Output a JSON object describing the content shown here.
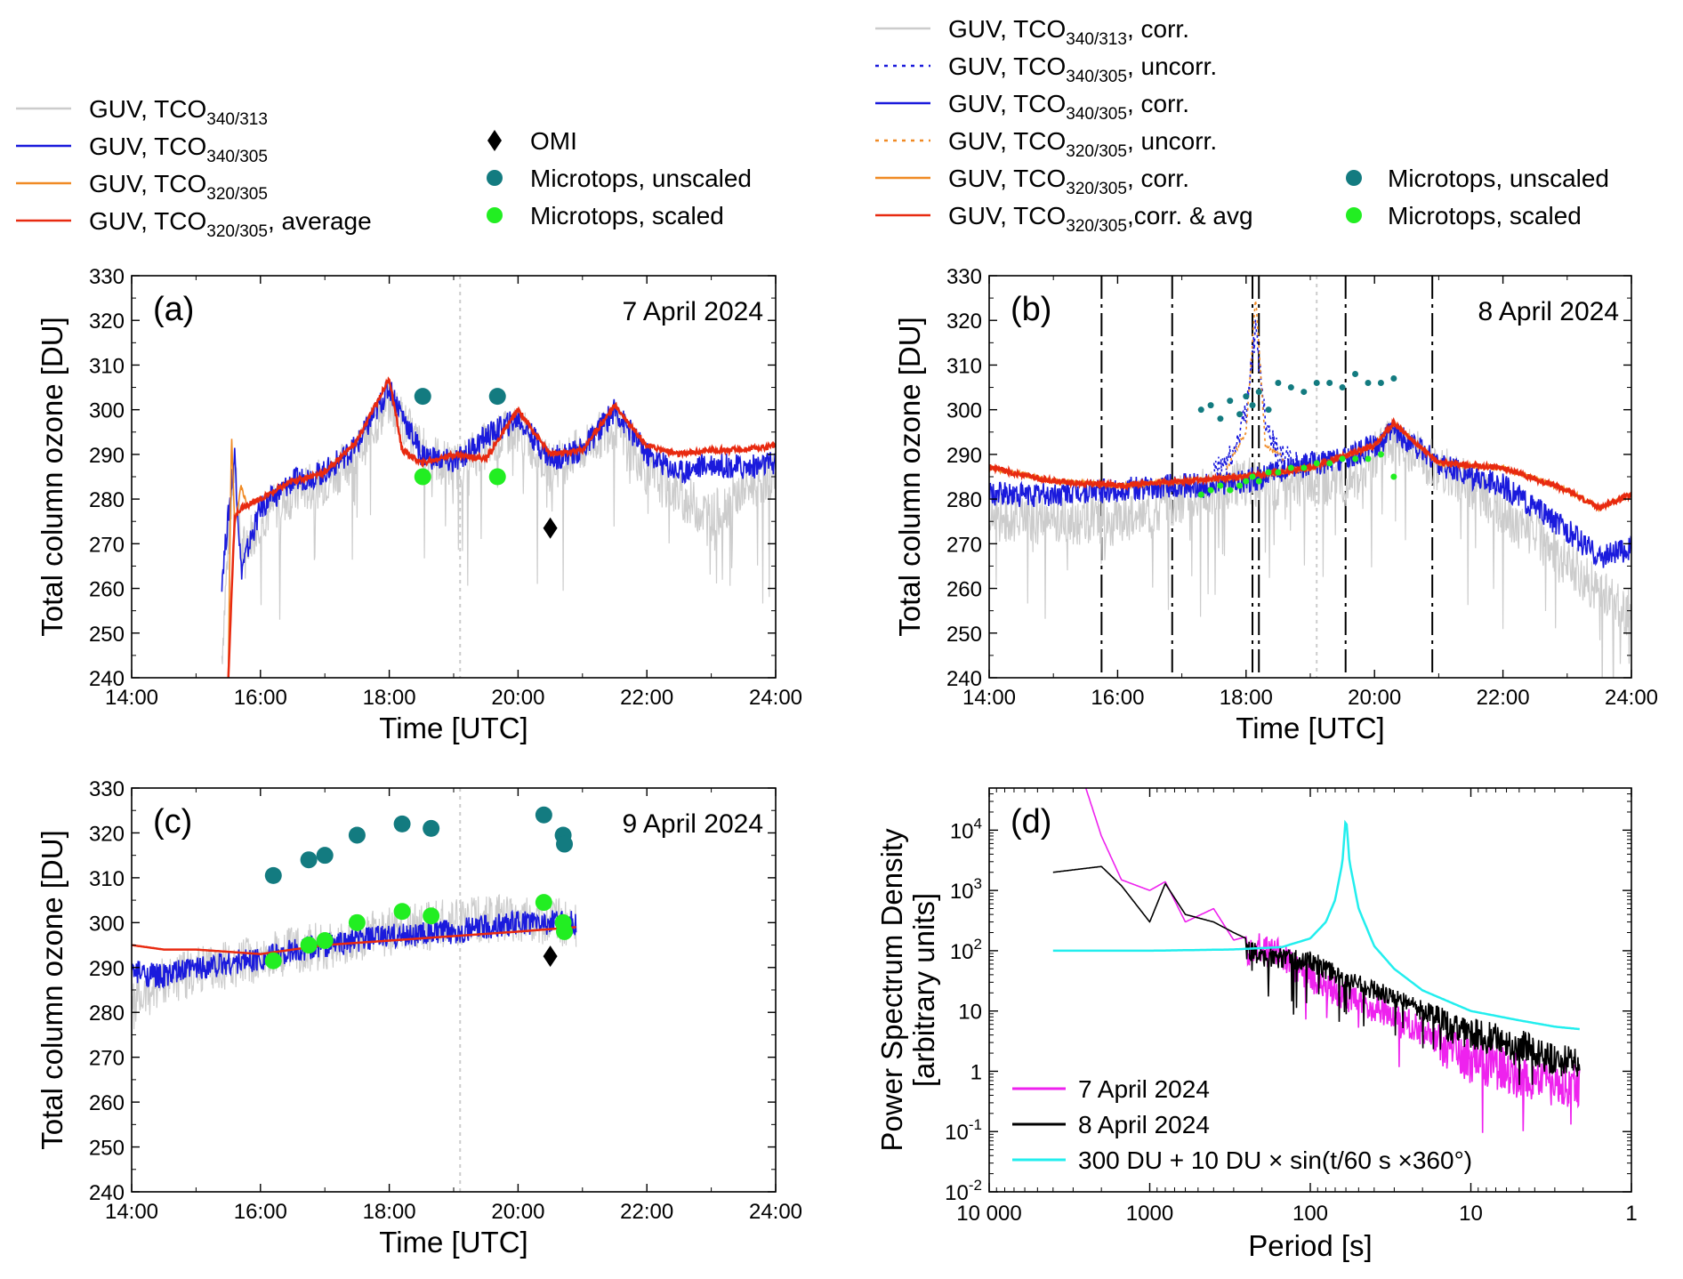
{
  "legend_left": [
    {
      "type": "line",
      "color": "#cccccc",
      "dash": "",
      "text": "GUV, TCO",
      "sub": "340/313",
      "after": ""
    },
    {
      "type": "line",
      "color": "#1a1adc",
      "dash": "",
      "text": "GUV, TCO",
      "sub": "340/305",
      "after": ""
    },
    {
      "type": "line",
      "color": "#f08a24",
      "dash": "",
      "text": "GUV, TCO",
      "sub": "320/305",
      "after": ""
    },
    {
      "type": "line",
      "color": "#e82a10",
      "dash": "",
      "text": "GUV, TCO",
      "sub": "320/305",
      "after": ", average"
    }
  ],
  "legend_mid": [
    {
      "type": "diamond",
      "color": "#000000",
      "text": "OMI"
    },
    {
      "type": "dot",
      "color": "#137b80",
      "text": "Microtops, unscaled"
    },
    {
      "type": "dot",
      "color": "#22ee22",
      "text": "Microtops, scaled"
    }
  ],
  "legend_right": [
    {
      "type": "line",
      "color": "#cccccc",
      "dash": "",
      "text": "GUV, TCO",
      "sub": "340/313",
      "after": ", corr."
    },
    {
      "type": "line",
      "color": "#1a1adc",
      "dash": "4 6",
      "text": "GUV, TCO",
      "sub": "340/305",
      "after": ", uncorr."
    },
    {
      "type": "line",
      "color": "#1a1adc",
      "dash": "",
      "text": "GUV, TCO",
      "sub": "340/305",
      "after": ", corr."
    },
    {
      "type": "line",
      "color": "#f08a24",
      "dash": "4 6",
      "text": "GUV, TCO",
      "sub": "320/305",
      "after": ", uncorr."
    },
    {
      "type": "line",
      "color": "#f08a24",
      "dash": "",
      "text": "GUV, TCO",
      "sub": "320/305",
      "after": ", corr."
    },
    {
      "type": "line",
      "color": "#e82a10",
      "dash": "",
      "text": "GUV, TCO",
      "sub": "320/305",
      "after": ",corr. & avg"
    }
  ],
  "legend_right_markers": [
    {
      "type": "dot",
      "color": "#137b80",
      "text": "Microtops, unscaled"
    },
    {
      "type": "dot",
      "color": "#22ee22",
      "text": "Microtops, scaled"
    }
  ],
  "colors": {
    "guv_340_313": "#cccccc",
    "guv_340_305": "#1a1adc",
    "guv_320_305": "#f08a24",
    "guv_average": "#e82a10",
    "microtops_unscaled": "#137b80",
    "microtops_scaled": "#22ee22",
    "omi": "#000000",
    "psd_7april": "#ee22ee",
    "psd_8april": "#000000",
    "psd_sine": "#22eeee"
  },
  "chart_data": [
    {
      "panel": "a",
      "type": "line",
      "tag": "(a)",
      "date": "7 April 2024",
      "xlabel": "Time [UTC]",
      "ylabel": "Total column ozone [DU]",
      "xlim": [
        14,
        24
      ],
      "ylim": [
        240,
        330
      ],
      "xticks": [
        14,
        16,
        18,
        20,
        22,
        24
      ],
      "xtick_labels": [
        "14:00",
        "16:00",
        "18:00",
        "20:00",
        "22:00",
        "24:00"
      ],
      "yticks": [
        240,
        250,
        260,
        270,
        280,
        290,
        300,
        310,
        320,
        330
      ],
      "ytick_labels": [
        "240",
        "250",
        "260",
        "270",
        "280",
        "290",
        "300",
        "310",
        "320",
        "330"
      ],
      "ref_lines": [
        19.1
      ],
      "series": [
        {
          "name": "GUV, TCO340/313",
          "key": "guv_340_313",
          "x": [
            15.4,
            15.5,
            15.6,
            15.7,
            16.0,
            16.5,
            17.0,
            17.5,
            18.0,
            18.5,
            19.0,
            19.5,
            20.0,
            20.5,
            21.0,
            21.5,
            22.0,
            22.5,
            23.0,
            23.5,
            24.0
          ],
          "y": [
            245,
            270,
            290,
            268,
            276,
            281,
            284,
            290,
            302,
            291,
            287,
            292,
            296,
            287,
            291,
            297,
            286,
            281,
            276,
            282,
            286
          ]
        },
        {
          "name": "GUV, TCO340/305",
          "key": "guv_340_305",
          "x": [
            15.4,
            15.5,
            15.6,
            15.7,
            16.0,
            16.5,
            17.0,
            17.5,
            18.0,
            18.5,
            19.0,
            19.5,
            20.0,
            20.5,
            21.0,
            21.5,
            22.0,
            22.5,
            23.0,
            23.5,
            24.0
          ],
          "y": [
            262,
            276,
            290,
            264,
            278,
            284,
            286,
            292,
            305,
            290,
            288,
            294,
            298,
            289,
            291,
            300,
            290,
            286,
            288,
            287,
            288
          ]
        },
        {
          "name": "GUV, TCO320/305",
          "key": "guv_320_305",
          "x": [
            15.5,
            15.55,
            15.6,
            15.7,
            15.8
          ],
          "y": [
            240,
            295,
            274,
            283,
            278
          ]
        },
        {
          "name": "GUV, TCO320/305, average",
          "key": "guv_average",
          "x": [
            15.5,
            15.6,
            15.7,
            16.0,
            16.5,
            17.0,
            17.5,
            18.0,
            18.2,
            18.5,
            19.0,
            19.5,
            20.0,
            20.5,
            21.0,
            21.5,
            22.0,
            22.5,
            23.0,
            23.5,
            24.0
          ],
          "y": [
            240,
            276,
            278,
            280,
            284,
            286,
            293,
            307,
            291,
            288,
            290,
            289,
            300,
            290,
            291,
            301,
            292,
            290,
            291,
            291,
            292
          ]
        }
      ],
      "microtops_unscaled": {
        "x": [
          18.52,
          19.68
        ],
        "y": [
          303,
          303
        ]
      },
      "microtops_scaled": {
        "x": [
          18.52,
          19.68
        ],
        "y": [
          285,
          285
        ]
      },
      "omi": {
        "x": [
          20.5
        ],
        "y": [
          273.5
        ]
      }
    },
    {
      "panel": "b",
      "type": "line",
      "tag": "(b)",
      "date": "8 April 2024",
      "xlabel": "Time [UTC]",
      "ylabel": "Total column ozone [DU]",
      "xlim": [
        14,
        24
      ],
      "ylim": [
        240,
        330
      ],
      "xticks": [
        14,
        16,
        18,
        20,
        22,
        24
      ],
      "xtick_labels": [
        "14:00",
        "16:00",
        "18:00",
        "20:00",
        "22:00",
        "24:00"
      ],
      "yticks": [
        240,
        250,
        260,
        270,
        280,
        290,
        300,
        310,
        320,
        330
      ],
      "ytick_labels": [
        "240",
        "250",
        "260",
        "270",
        "280",
        "290",
        "300",
        "310",
        "320",
        "330"
      ],
      "ref_lines": [
        19.1
      ],
      "event_lines": [
        15.75,
        16.85,
        18.1,
        18.2,
        19.55,
        20.9
      ],
      "series": [
        {
          "name": "GUV, TCO340/313, corr.",
          "key": "guv_340_313",
          "x": [
            14.0,
            15.0,
            16.0,
            17.0,
            17.5,
            18.0,
            18.5,
            19.0,
            19.5,
            20.0,
            20.3,
            21.0,
            21.5,
            22.0,
            22.5,
            23.0,
            23.5,
            24.0
          ],
          "y": [
            276,
            275,
            275,
            280,
            282,
            284,
            283,
            284,
            283,
            290,
            293,
            287,
            283,
            277,
            272,
            266,
            259,
            254
          ]
        },
        {
          "name": "GUV, TCO340/305, uncorr.",
          "key": "guv_340_305",
          "x": [
            17.5,
            17.8,
            18.0,
            18.15,
            18.3,
            18.5,
            18.8
          ],
          "y": [
            286,
            290,
            300,
            318,
            298,
            290,
            288
          ]
        },
        {
          "name": "GUV, TCO340/305, corr.",
          "key": "guv_340_305",
          "x": [
            14.0,
            15.0,
            16.0,
            17.0,
            17.5,
            18.0,
            18.5,
            19.0,
            19.5,
            20.0,
            20.3,
            21.0,
            21.5,
            22.0,
            22.5,
            23.0,
            23.5,
            24.0
          ],
          "y": [
            281,
            281,
            282,
            283,
            283,
            284,
            286,
            288,
            289,
            292,
            295,
            288,
            285,
            283,
            278,
            273,
            267,
            269
          ]
        },
        {
          "name": "GUV, TCO320/305, uncorr.",
          "key": "guv_320_305",
          "x": [
            17.7,
            18.0,
            18.15,
            18.3,
            18.6
          ],
          "y": [
            287,
            295,
            325,
            292,
            289
          ]
        },
        {
          "name": "GUV, TCO320/305, corr.",
          "key": "guv_320_305",
          "x": [
            14.0,
            15.0,
            16.0,
            17.0,
            18.0,
            19.0,
            20.0,
            20.3,
            21.0,
            22.0,
            23.0,
            23.5,
            24.0
          ],
          "y": [
            287,
            284,
            283,
            284,
            285,
            287,
            292,
            297,
            288,
            287,
            282,
            278,
            281
          ]
        },
        {
          "name": "GUV, TCO320/305,corr. & avg",
          "key": "guv_average",
          "x": [
            14.0,
            15.0,
            16.0,
            17.0,
            18.0,
            19.0,
            20.0,
            20.3,
            21.0,
            22.0,
            23.0,
            23.5,
            24.0
          ],
          "y": [
            287,
            284,
            283,
            284,
            285,
            287,
            292,
            297,
            288,
            287,
            282,
            278,
            281
          ]
        }
      ],
      "microtops_unscaled": {
        "x": [
          17.3,
          17.45,
          17.6,
          17.75,
          17.9,
          18.0,
          18.1,
          18.2,
          18.35,
          18.5,
          18.7,
          18.9,
          19.1,
          19.3,
          19.5,
          19.7,
          19.9,
          20.1,
          20.3
        ],
        "y": [
          300,
          301,
          298,
          302,
          299,
          303,
          301,
          304,
          300,
          306,
          305,
          304,
          306,
          306,
          305,
          308,
          306,
          306,
          307
        ]
      },
      "microtops_scaled": {
        "x": [
          17.3,
          17.45,
          17.6,
          17.75,
          17.9,
          18.0,
          18.1,
          18.2,
          18.35,
          18.5,
          18.7,
          18.9,
          19.1,
          19.3,
          19.5,
          19.7,
          19.9,
          20.1,
          20.3
        ],
        "y": [
          281,
          282,
          283,
          282,
          283,
          284,
          285,
          284,
          286,
          286,
          287,
          287,
          288,
          288,
          289,
          289,
          289,
          290,
          285
        ]
      }
    },
    {
      "panel": "c",
      "type": "line",
      "tag": "(c)",
      "date": "9 April 2024",
      "xlabel": "Time [UTC]",
      "ylabel": "Total column ozone [DU]",
      "xlim": [
        14,
        24
      ],
      "ylim": [
        240,
        330
      ],
      "xticks": [
        14,
        16,
        18,
        20,
        22,
        24
      ],
      "xtick_labels": [
        "14:00",
        "16:00",
        "18:00",
        "20:00",
        "22:00",
        "24:00"
      ],
      "yticks": [
        240,
        250,
        260,
        270,
        280,
        290,
        300,
        310,
        320,
        330
      ],
      "ytick_labels": [
        "240",
        "250",
        "260",
        "270",
        "280",
        "290",
        "300",
        "310",
        "320",
        "330"
      ],
      "ref_lines": [
        19.1
      ],
      "series": [
        {
          "name": "GUV, TCO340/313",
          "key": "guv_340_313",
          "x": [
            14.0,
            14.2,
            14.5,
            15.0,
            16.0,
            17.0,
            18.0,
            19.0,
            20.0,
            20.9
          ],
          "y": [
            281,
            284,
            287,
            289,
            292,
            295,
            298,
            300,
            301,
            300
          ]
        },
        {
          "name": "GUV, TCO340/305",
          "key": "guv_340_305",
          "x": [
            14.0,
            14.5,
            15.0,
            16.0,
            17.0,
            18.0,
            19.0,
            20.0,
            20.9
          ],
          "y": [
            289,
            288,
            290,
            292,
            295,
            297,
            298,
            300,
            300
          ]
        },
        {
          "name": "GUV, TCO320/305, average",
          "key": "guv_average",
          "x": [
            14.0,
            14.5,
            15.0,
            16.0,
            17.0,
            18.0,
            19.0,
            20.0,
            20.9
          ],
          "y": [
            295,
            294,
            294,
            293,
            295,
            296,
            297,
            298,
            299
          ]
        }
      ],
      "microtops_unscaled": {
        "x": [
          16.2,
          16.75,
          17.0,
          17.5,
          18.2,
          18.65,
          20.4,
          20.7,
          20.72
        ],
        "y": [
          310.5,
          314,
          315,
          319.5,
          322,
          321,
          324,
          319.5,
          317.5
        ]
      },
      "microtops_scaled": {
        "x": [
          16.2,
          16.75,
          17.0,
          17.5,
          18.2,
          18.65,
          20.4,
          20.7,
          20.72
        ],
        "y": [
          291.5,
          295,
          296,
          300,
          302.5,
          301.5,
          304.5,
          300,
          298
        ]
      },
      "omi": {
        "x": [
          20.5
        ],
        "y": [
          292.5
        ]
      }
    },
    {
      "panel": "d",
      "type": "line",
      "tag": "(d)",
      "xlabel": "Period [s]",
      "ylabel": "Power Spectrum Density",
      "ylabel2": "[arbitrary units]",
      "xscale": "log",
      "yscale": "log",
      "x_reversed": true,
      "xlim": [
        10000,
        1
      ],
      "ylim": [
        0.01,
        50000
      ],
      "xticks": [
        10000,
        1000,
        100,
        10,
        1
      ],
      "xtick_labels": [
        "10 000",
        "1000",
        "100",
        "10",
        "1"
      ],
      "yticks_major": [
        {
          "v": 0.01,
          "base": "10",
          "exp": "-2"
        },
        {
          "v": 0.1,
          "base": "10",
          "exp": "-1"
        },
        {
          "v": 1,
          "base": "1",
          "exp": ""
        },
        {
          "v": 10,
          "base": "10",
          "exp": ""
        },
        {
          "v": 100,
          "base": "10",
          "exp": "2"
        },
        {
          "v": 1000,
          "base": "10",
          "exp": "3"
        },
        {
          "v": 10000,
          "base": "10",
          "exp": "4"
        }
      ],
      "series": [
        {
          "name": "7 April 2024",
          "key": "psd_7april",
          "x": [
            2500,
            2000,
            1500,
            1200,
            1000,
            800,
            600,
            400,
            300,
            200,
            150,
            100,
            60,
            30,
            20,
            10,
            5,
            3,
            2.1
          ],
          "y": [
            50000,
            8000,
            1500,
            1200,
            1000,
            1400,
            300,
            500,
            150,
            200,
            150,
            60,
            30,
            15,
            8,
            4,
            2,
            1.5,
            1.5
          ]
        },
        {
          "name": "8 April 2024",
          "key": "psd_8april",
          "x": [
            4000,
            2000,
            1500,
            1000,
            800,
            600,
            400,
            300,
            200,
            100,
            60,
            30,
            20,
            10,
            5,
            3,
            2.1
          ],
          "y": [
            2000,
            2500,
            1200,
            300,
            1300,
            400,
            300,
            200,
            120,
            100,
            50,
            25,
            15,
            8,
            5,
            3,
            2.5
          ]
        },
        {
          "name": "300 DU + 10 DU ×  sin(t/60 s ×360°)",
          "key": "psd_sine",
          "x": [
            4000,
            1000,
            300,
            150,
            100,
            80,
            70,
            63,
            60,
            57,
            50,
            40,
            30,
            20,
            10,
            5,
            3,
            2.1
          ],
          "y": [
            100,
            100,
            105,
            115,
            160,
            300,
            700,
            3000,
            18000,
            3000,
            500,
            120,
            50,
            22,
            10,
            7,
            5.5,
            5
          ]
        }
      ],
      "legend": [
        "7 April 2024",
        "8 April 2024",
        "300 DU + 10 DU ×  sin(t/60 s ×360°)"
      ]
    }
  ]
}
